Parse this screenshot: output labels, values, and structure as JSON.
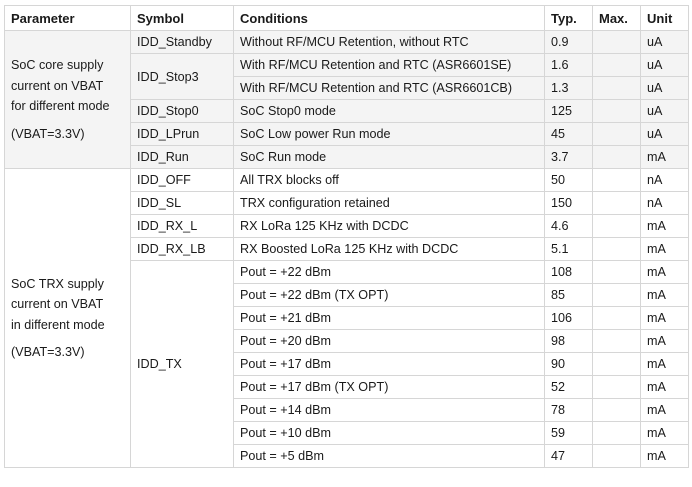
{
  "headers": [
    "Parameter",
    "Symbol",
    "Conditions",
    "Typ.",
    "Max.",
    "Unit"
  ],
  "groups": [
    {
      "parameter_lines": [
        "SoC core supply",
        "current on VBAT",
        "for different mode"
      ],
      "parameter_note": "(VBAT=3.3V)",
      "rows": [
        {
          "symbol": "IDD_Standby",
          "conditions": "Without RF/MCU Retention, without RTC",
          "typ": "0.9",
          "max": "",
          "unit": "uA"
        },
        {
          "symbol": "IDD_Stop3",
          "conditions": "With RF/MCU Retention and RTC (ASR6601SE)",
          "typ": "1.6",
          "max": "",
          "unit": "uA"
        },
        {
          "symbol": "",
          "conditions": "With RF/MCU Retention and RTC (ASR6601CB)",
          "typ": "1.3",
          "max": "",
          "unit": "uA"
        },
        {
          "symbol": "IDD_Stop0",
          "conditions": "SoC Stop0 mode",
          "typ": "125",
          "max": "",
          "unit": "uA"
        },
        {
          "symbol": "IDD_LPrun",
          "conditions": "SoC Low power Run mode",
          "typ": "45",
          "max": "",
          "unit": "uA"
        },
        {
          "symbol": "IDD_Run",
          "conditions": "SoC Run mode",
          "typ": "3.7",
          "max": "",
          "unit": "mA"
        }
      ]
    },
    {
      "parameter_lines": [
        "SoC TRX supply",
        "current on VBAT",
        "in different mode"
      ],
      "parameter_note": "(VBAT=3.3V)",
      "rows": [
        {
          "symbol": "IDD_OFF",
          "conditions": "All TRX blocks off",
          "typ": "50",
          "max": "",
          "unit": "nA"
        },
        {
          "symbol": "IDD_SL",
          "conditions": "TRX configuration retained",
          "typ": "150",
          "max": "",
          "unit": "nA"
        },
        {
          "symbol": "IDD_RX_L",
          "conditions": "RX LoRa 125 KHz with DCDC",
          "typ": "4.6",
          "max": "",
          "unit": "mA"
        },
        {
          "symbol": "IDD_RX_LB",
          "conditions": "RX Boosted LoRa 125 KHz with DCDC",
          "typ": "5.1",
          "max": "",
          "unit": "mA"
        },
        {
          "symbol": "IDD_TX",
          "conditions": "Pout = +22 dBm",
          "typ": "108",
          "max": "",
          "unit": "mA"
        },
        {
          "symbol": "",
          "conditions": "Pout = +22 dBm (TX OPT)",
          "typ": "85",
          "max": "",
          "unit": "mA"
        },
        {
          "symbol": "",
          "conditions": "Pout = +21 dBm",
          "typ": "106",
          "max": "",
          "unit": "mA"
        },
        {
          "symbol": "",
          "conditions": "Pout = +20 dBm",
          "typ": "98",
          "max": "",
          "unit": "mA"
        },
        {
          "symbol": "",
          "conditions": "Pout = +17 dBm",
          "typ": "90",
          "max": "",
          "unit": "mA"
        },
        {
          "symbol": "",
          "conditions": "Pout = +17 dBm (TX OPT)",
          "typ": "52",
          "max": "",
          "unit": "mA"
        },
        {
          "symbol": "",
          "conditions": "Pout = +14 dBm",
          "typ": "78",
          "max": "",
          "unit": "mA"
        },
        {
          "symbol": "",
          "conditions": "Pout = +10 dBm",
          "typ": "59",
          "max": "",
          "unit": "mA"
        },
        {
          "symbol": "",
          "conditions": "Pout = +5 dBm",
          "typ": "47",
          "max": "",
          "unit": "mA"
        }
      ]
    }
  ]
}
